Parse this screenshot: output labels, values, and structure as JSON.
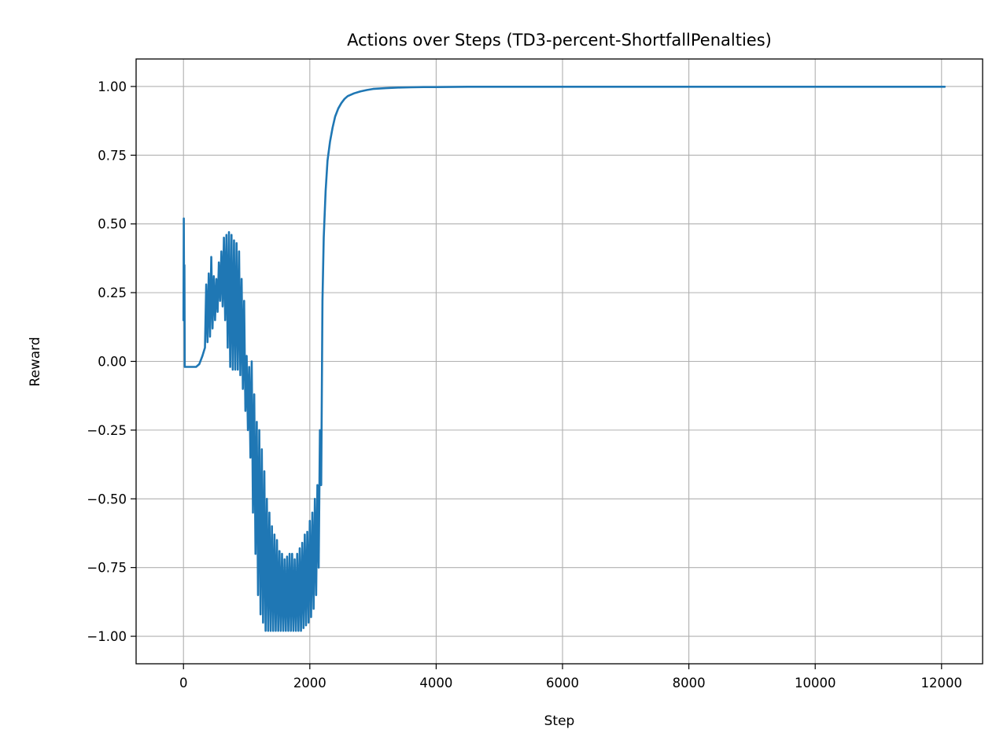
{
  "chart_data": {
    "type": "line",
    "title": "Actions over Steps (TD3-percent-ShortfallPenalties)",
    "xlabel": "Step",
    "ylabel": "Reward",
    "xlim": [
      -750,
      12650
    ],
    "ylim": [
      -1.1,
      1.1
    ],
    "xticks": [
      0,
      2000,
      4000,
      6000,
      8000,
      10000,
      12000
    ],
    "xtick_labels": [
      "0",
      "2000",
      "4000",
      "6000",
      "8000",
      "10000",
      "12000"
    ],
    "yticks": [
      1.0,
      0.75,
      0.5,
      0.25,
      0.0,
      -0.25,
      -0.5,
      -0.75,
      -1.0
    ],
    "ytick_labels": [
      "1.00",
      "0.75",
      "0.50",
      "0.25",
      "0.00",
      "−0.25",
      "−0.50",
      "−0.75",
      "−1.00"
    ],
    "grid": true,
    "color": "#1f77b4",
    "series": [
      {
        "name": "",
        "x": [
          0,
          5,
          10,
          15,
          20,
          25,
          30,
          40,
          60,
          100,
          150,
          200,
          250,
          300,
          340,
          360,
          380,
          400,
          420,
          440,
          460,
          480,
          500,
          520,
          540,
          560,
          580,
          600,
          620,
          640,
          660,
          680,
          700,
          720,
          740,
          760,
          780,
          800,
          820,
          840,
          860,
          880,
          900,
          920,
          940,
          960,
          980,
          1000,
          1020,
          1040,
          1060,
          1080,
          1100,
          1120,
          1140,
          1160,
          1180,
          1200,
          1220,
          1240,
          1260,
          1280,
          1300,
          1320,
          1340,
          1360,
          1380,
          1400,
          1420,
          1440,
          1460,
          1480,
          1500,
          1520,
          1540,
          1560,
          1580,
          1600,
          1620,
          1640,
          1660,
          1680,
          1700,
          1720,
          1740,
          1760,
          1780,
          1800,
          1820,
          1840,
          1860,
          1880,
          1900,
          1920,
          1940,
          1960,
          1980,
          2000,
          2020,
          2040,
          2060,
          2080,
          2100,
          2120,
          2140,
          2160,
          2180,
          2200,
          2220,
          2250,
          2280,
          2320,
          2360,
          2400,
          2450,
          2500,
          2550,
          2600,
          2700,
          2800,
          2900,
          3000,
          3200,
          3400,
          3600,
          3800,
          4000,
          4500,
          5000,
          5500,
          6000,
          7000,
          8000,
          9000,
          10000,
          11000,
          12050
        ],
        "y": [
          0.15,
          0.52,
          0.15,
          0.35,
          -0.02,
          -0.02,
          -0.02,
          -0.02,
          -0.02,
          -0.02,
          -0.02,
          -0.02,
          -0.01,
          0.02,
          0.05,
          0.28,
          0.07,
          0.32,
          0.09,
          0.38,
          0.12,
          0.31,
          0.15,
          0.3,
          0.18,
          0.36,
          0.22,
          0.4,
          0.2,
          0.45,
          0.15,
          0.46,
          0.05,
          0.47,
          -0.02,
          0.46,
          -0.03,
          0.44,
          -0.03,
          0.43,
          -0.03,
          0.4,
          -0.05,
          0.3,
          -0.1,
          0.22,
          -0.18,
          0.02,
          -0.25,
          -0.02,
          -0.35,
          0.0,
          -0.55,
          -0.12,
          -0.7,
          -0.22,
          -0.85,
          -0.25,
          -0.92,
          -0.32,
          -0.95,
          -0.4,
          -0.98,
          -0.5,
          -0.98,
          -0.55,
          -0.98,
          -0.6,
          -0.98,
          -0.63,
          -0.98,
          -0.65,
          -0.98,
          -0.69,
          -0.98,
          -0.7,
          -0.98,
          -0.72,
          -0.98,
          -0.71,
          -0.98,
          -0.7,
          -0.98,
          -0.7,
          -0.98,
          -0.72,
          -0.98,
          -0.7,
          -0.98,
          -0.68,
          -0.98,
          -0.66,
          -0.97,
          -0.63,
          -0.96,
          -0.62,
          -0.95,
          -0.58,
          -0.93,
          -0.55,
          -0.9,
          -0.5,
          -0.85,
          -0.45,
          -0.75,
          -0.25,
          -0.45,
          0.22,
          0.45,
          0.62,
          0.73,
          0.8,
          0.85,
          0.89,
          0.92,
          0.94,
          0.955,
          0.965,
          0.975,
          0.982,
          0.987,
          0.991,
          0.994,
          0.996,
          0.997,
          0.998,
          0.998,
          0.999,
          0.999,
          0.999,
          0.999,
          0.999,
          0.999,
          0.999,
          0.999,
          0.999,
          0.999
        ]
      }
    ]
  }
}
